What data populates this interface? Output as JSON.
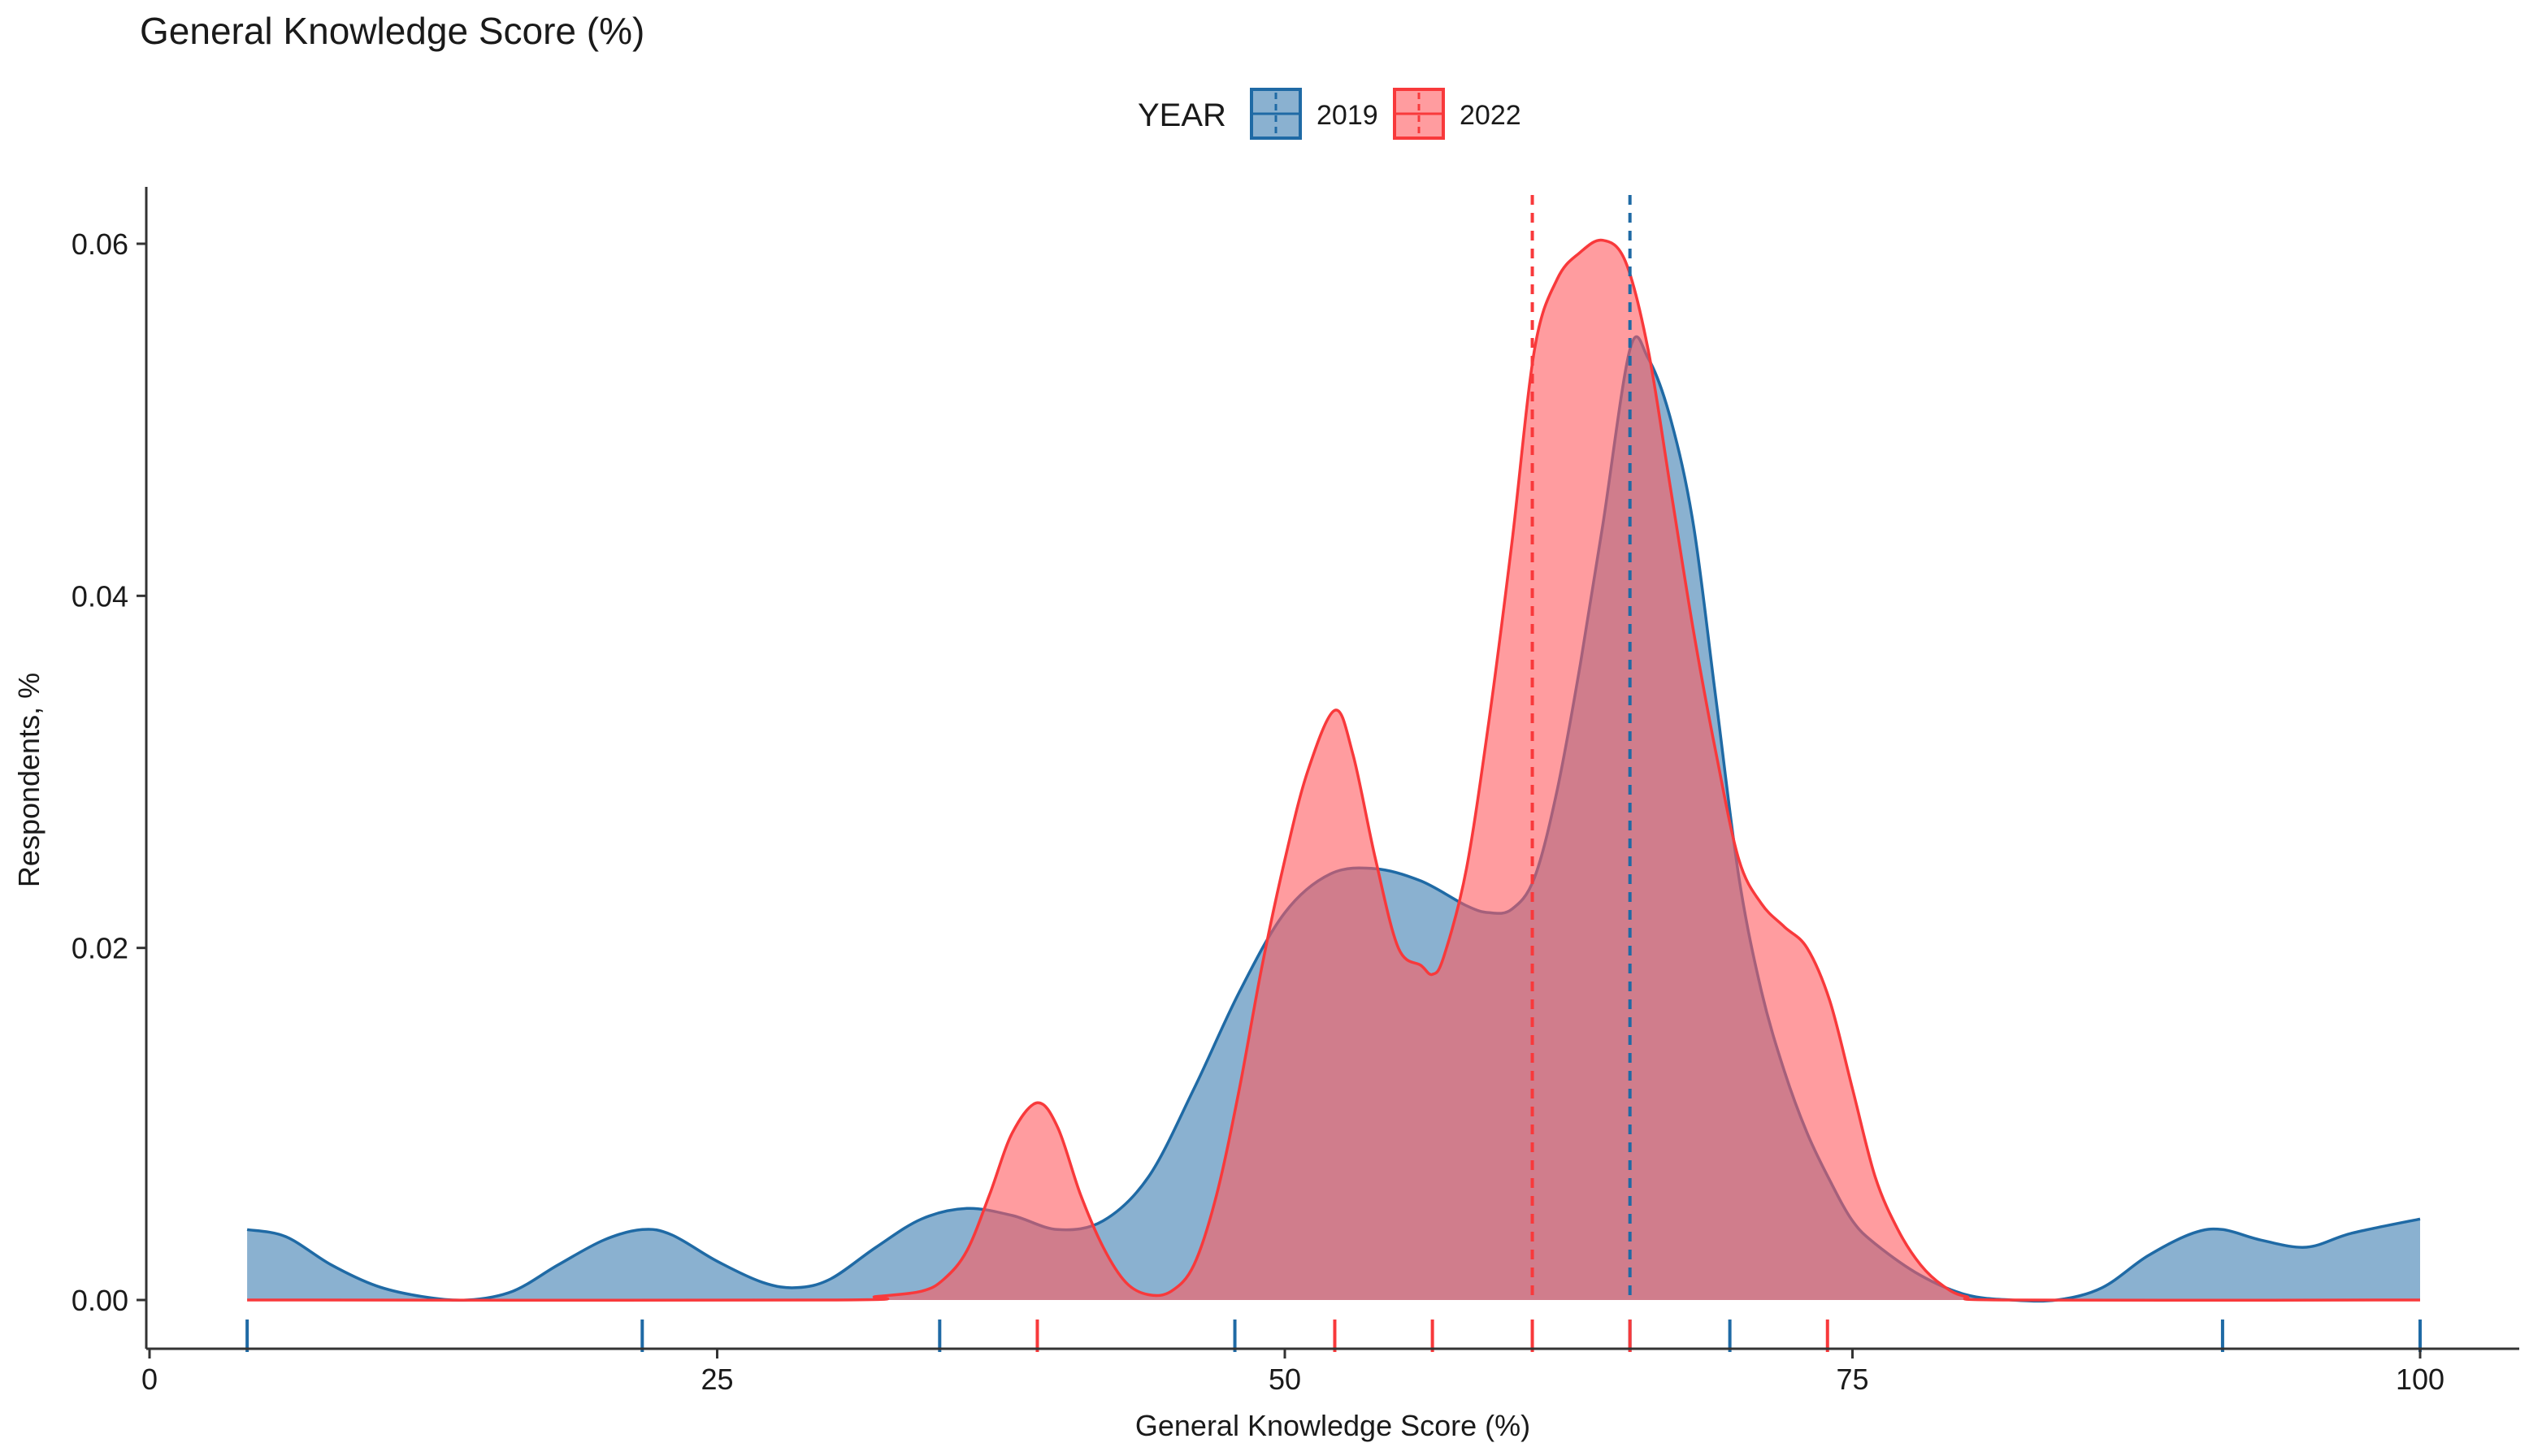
{
  "chart_data": {
    "type": "area",
    "title": "General Knowledge Score (%)",
    "xlabel": "General Knowledge Score (%)",
    "ylabel": "Respondents, %",
    "xlim": [
      0,
      100
    ],
    "ylim": [
      0,
      0.062
    ],
    "x_ticks": [
      0,
      25,
      50,
      75,
      100
    ],
    "x_tick_labels": [
      "0",
      "25",
      "50",
      "75",
      "100"
    ],
    "y_ticks": [
      0,
      0.02,
      0.04,
      0.06
    ],
    "y_tick_labels": [
      "0.00",
      "0.02",
      "0.04",
      "0.06"
    ],
    "legend": {
      "title": "YEAR",
      "position": "top",
      "entries": [
        "2019",
        "2022"
      ]
    },
    "series": [
      {
        "name": "2019",
        "color": "#1f6aa5",
        "mean_line": 65.2,
        "rug": [
          4.3,
          21.7,
          34.8,
          47.8,
          65.2,
          69.6,
          91.3,
          100
        ],
        "x": [
          4.3,
          6,
          8,
          10,
          12,
          14,
          16,
          18,
          20,
          21.7,
          23,
          25,
          27,
          28.5,
          30,
          32,
          34,
          36,
          38,
          40,
          42,
          44,
          46,
          48,
          50,
          52,
          54,
          56,
          58,
          59,
          60,
          61,
          62,
          63,
          64,
          65.2,
          66,
          67,
          68,
          69,
          70,
          71,
          72,
          73,
          74,
          75,
          76,
          78,
          80,
          82,
          84,
          86,
          88,
          90,
          91.3,
          93,
          95,
          97,
          100
        ],
        "values": [
          0.004,
          0.0036,
          0.002,
          0.0008,
          0.0002,
          0.0,
          0.0005,
          0.002,
          0.0034,
          0.004,
          0.0037,
          0.0022,
          0.001,
          0.0007,
          0.0012,
          0.003,
          0.0046,
          0.0052,
          0.0048,
          0.004,
          0.0045,
          0.007,
          0.012,
          0.0175,
          0.022,
          0.0242,
          0.0245,
          0.0238,
          0.0224,
          0.022,
          0.0222,
          0.024,
          0.029,
          0.036,
          0.044,
          0.054,
          0.0535,
          0.05,
          0.044,
          0.034,
          0.024,
          0.0175,
          0.013,
          0.0095,
          0.0068,
          0.0045,
          0.0032,
          0.0014,
          0.0003,
          0.0,
          0.0,
          0.0007,
          0.0025,
          0.0038,
          0.004,
          0.0034,
          0.003,
          0.0038,
          0.0046
        ]
      },
      {
        "name": "2022",
        "color": "#f8393b",
        "mean_line": 60.9,
        "rug": [
          39.1,
          52.2,
          56.5,
          60.9,
          65.2,
          73.9
        ],
        "x": [
          4.3,
          30,
          32,
          34,
          35,
          36,
          37,
          38,
          39.1,
          40,
          41,
          42,
          43,
          44,
          45,
          46,
          47,
          48,
          49,
          50,
          51,
          52.2,
          53,
          54,
          55,
          56,
          56.5,
          57,
          58,
          59,
          60,
          61,
          62,
          63,
          64,
          65,
          66,
          67,
          68,
          69,
          70,
          71,
          72,
          73,
          74,
          75,
          76,
          77,
          78,
          79,
          80,
          82,
          100
        ],
        "values": [
          0.0,
          0.0,
          0.0002,
          0.0005,
          0.0012,
          0.0028,
          0.006,
          0.0095,
          0.0112,
          0.0098,
          0.006,
          0.003,
          0.001,
          0.0003,
          0.0005,
          0.002,
          0.006,
          0.012,
          0.019,
          0.025,
          0.03,
          0.0335,
          0.031,
          0.025,
          0.02,
          0.019,
          0.0185,
          0.0195,
          0.0245,
          0.033,
          0.043,
          0.054,
          0.058,
          0.0595,
          0.0602,
          0.059,
          0.054,
          0.046,
          0.038,
          0.031,
          0.025,
          0.0225,
          0.0212,
          0.02,
          0.017,
          0.012,
          0.007,
          0.004,
          0.002,
          0.0008,
          0.0002,
          0.0,
          0.0
        ]
      }
    ]
  }
}
